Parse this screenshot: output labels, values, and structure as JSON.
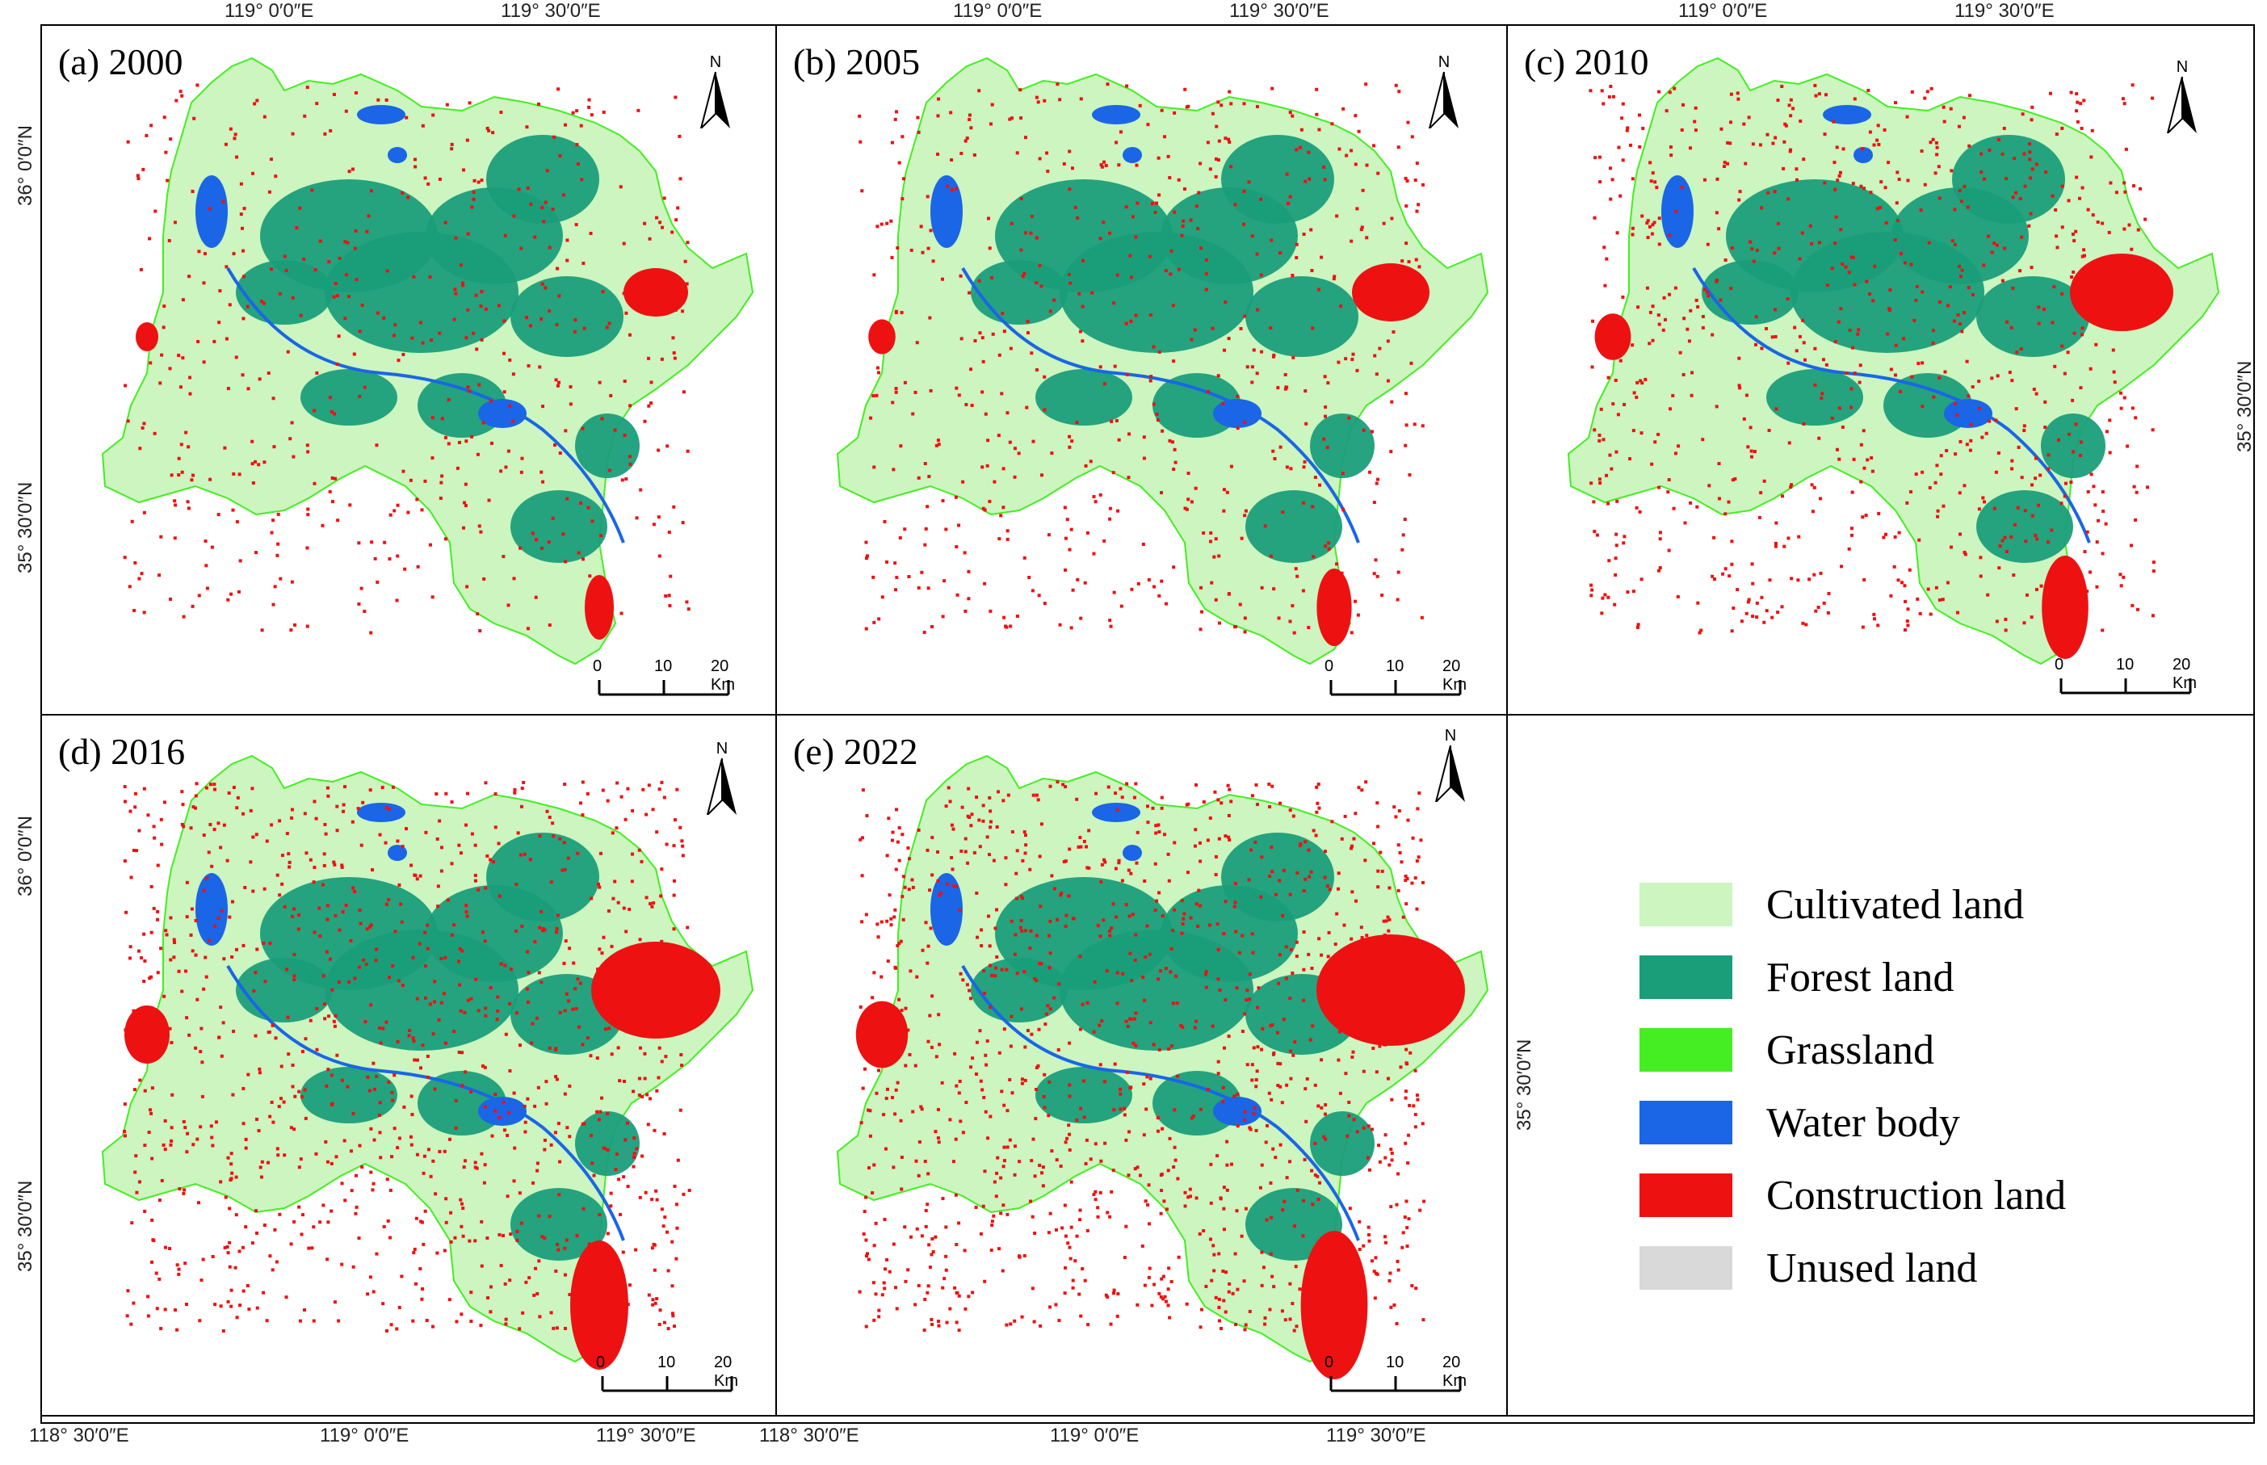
{
  "panels": [
    {
      "label": "(a) 2000"
    },
    {
      "label": "(b) 2005"
    },
    {
      "label": "(c) 2010"
    },
    {
      "label": "(d) 2016"
    },
    {
      "label": "(e) 2022"
    }
  ],
  "north_label": "N",
  "scale_bar": {
    "zero": "0",
    "mid": "10",
    "end": "20 Km"
  },
  "coords": {
    "lon_119_0": "119° 0′0″E",
    "lon_119_30": "119° 30′0″E",
    "lon_118_30": "118° 30′0″E",
    "lat_36_0": "36° 0′0″N",
    "lat_35_30": "35° 30′0″N"
  },
  "legend": [
    {
      "name": "Cultivated land",
      "color": "#ccf5bf"
    },
    {
      "name": "Forest land",
      "color": "#1a9e7a"
    },
    {
      "name": "Grassland",
      "color": "#44ee22"
    },
    {
      "name": "Water body",
      "color": "#1a66e6"
    },
    {
      "name": "Construction land",
      "color": "#ee1111"
    },
    {
      "name": "Unused land",
      "color": "#d9d9d9"
    }
  ]
}
